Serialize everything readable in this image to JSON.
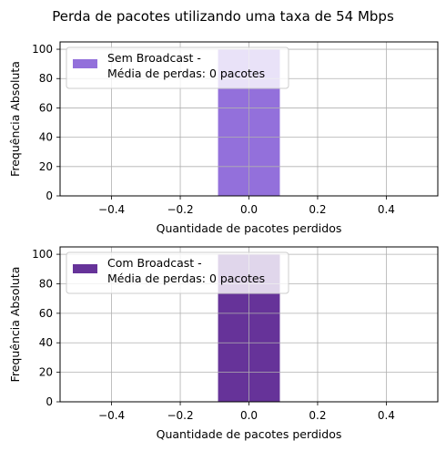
{
  "figure": {
    "title": "Perda de pacotes utilizando uma taxa de 54 Mbps"
  },
  "chart_data": [
    {
      "type": "bar",
      "xlabel": "Quantidade de pacotes perdidos",
      "ylabel": "Frequência Absoluta",
      "xlim": [
        -0.55,
        0.55
      ],
      "ylim": [
        0,
        105
      ],
      "xticks": [
        -0.4,
        -0.2,
        0.0,
        0.2,
        0.4
      ],
      "xtick_labels": [
        "−0.4",
        "−0.2",
        "0.0",
        "0.2",
        "0.4"
      ],
      "yticks": [
        0,
        20,
        40,
        60,
        80,
        100
      ],
      "grid": true,
      "legend": {
        "placement": "upper left",
        "lines": [
          "Sem Broadcast -",
          "Média de perdas: 0 pacotes"
        ]
      },
      "series": [
        {
          "name": "Sem Broadcast - Média de perdas: 0 pacotes",
          "color": "#9370DB",
          "bars": [
            {
              "x": 0,
              "width": 0.18,
              "value": 100
            }
          ]
        }
      ]
    },
    {
      "type": "bar",
      "xlabel": "Quantidade de pacotes perdidos",
      "ylabel": "Frequência Absoluta",
      "xlim": [
        -0.55,
        0.55
      ],
      "ylim": [
        0,
        105
      ],
      "xticks": [
        -0.4,
        -0.2,
        0.0,
        0.2,
        0.4
      ],
      "xtick_labels": [
        "−0.4",
        "−0.2",
        "0.0",
        "0.2",
        "0.4"
      ],
      "yticks": [
        0,
        20,
        40,
        60,
        80,
        100
      ],
      "grid": true,
      "legend": {
        "placement": "upper left",
        "lines": [
          "Com Broadcast -",
          "Média de perdas: 0 pacotes"
        ]
      },
      "series": [
        {
          "name": "Com Broadcast - Média de perdas: 0 pacotes",
          "color": "#663399",
          "bars": [
            {
              "x": 0,
              "width": 0.18,
              "value": 100
            }
          ]
        }
      ]
    }
  ]
}
